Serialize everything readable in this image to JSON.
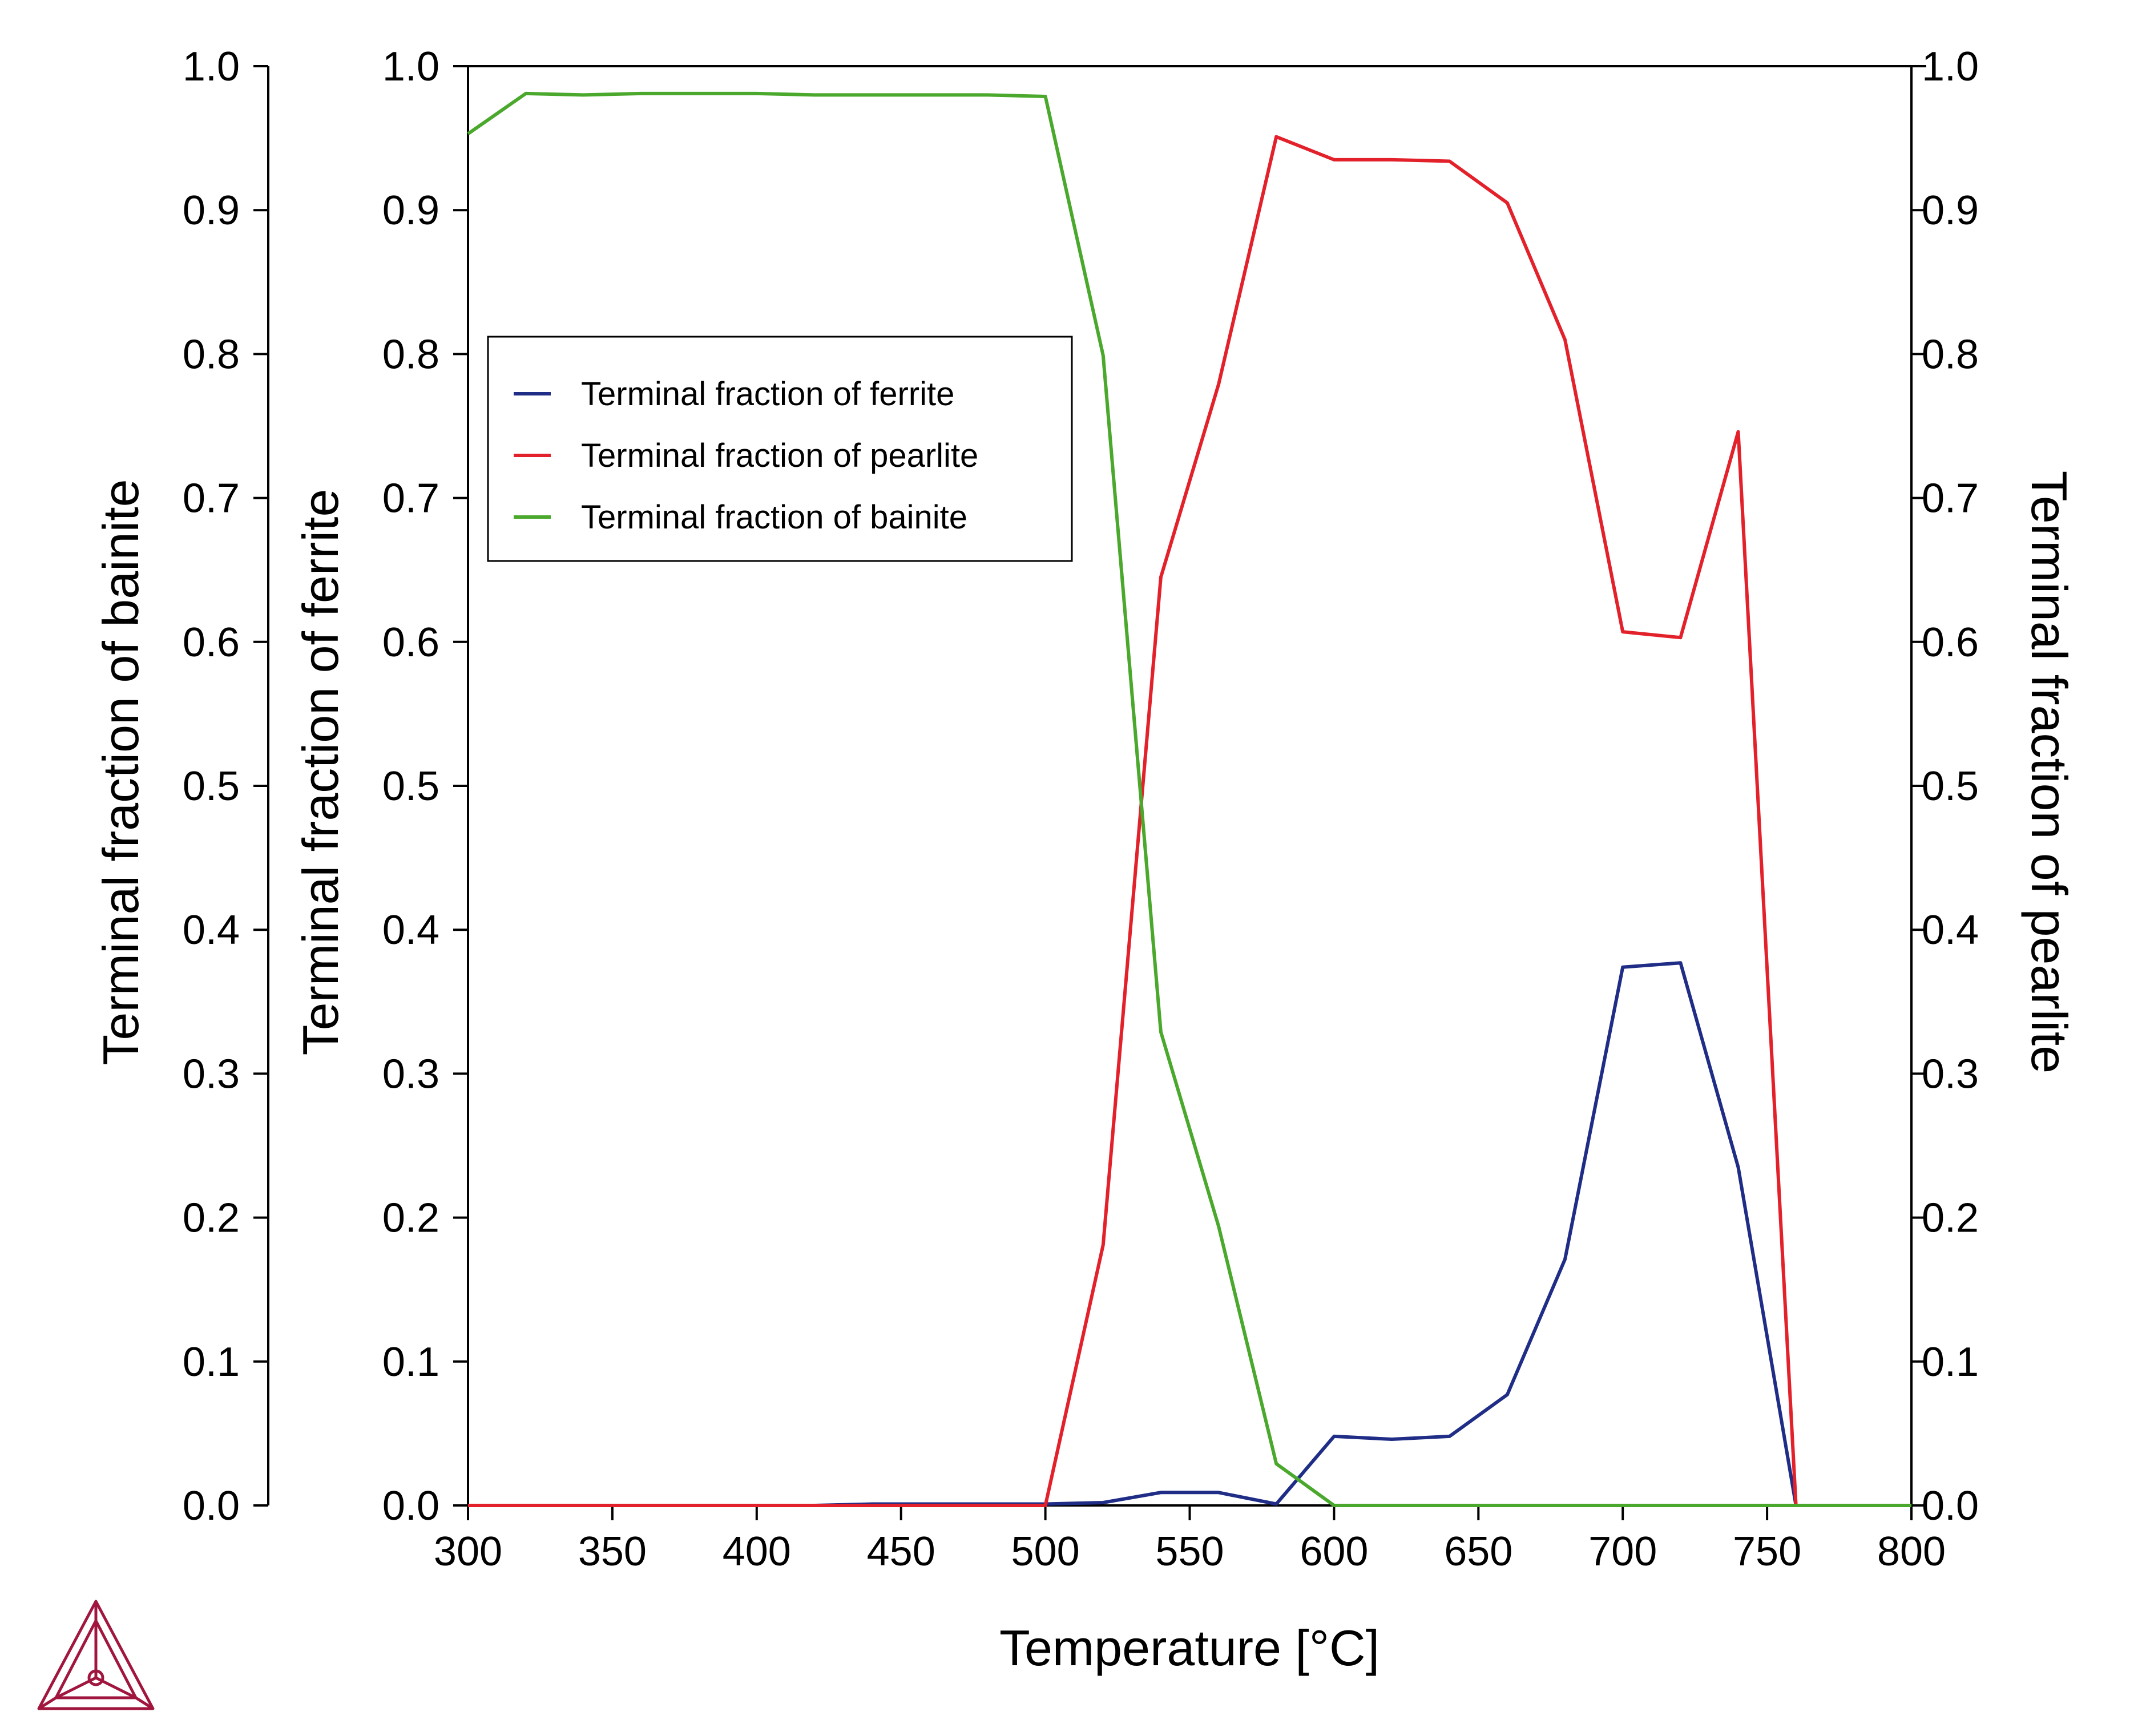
{
  "chart_data": {
    "type": "line",
    "xlabel": "Temperature [°C]",
    "xlim": [
      300,
      800
    ],
    "x_ticks": [
      "300",
      "350",
      "400",
      "450",
      "500",
      "550",
      "600",
      "650",
      "700",
      "750",
      "800"
    ],
    "y_ticks": [
      "0.0",
      "0.1",
      "0.2",
      "0.3",
      "0.4",
      "0.5",
      "0.6",
      "0.7",
      "0.8",
      "0.9",
      "1.0"
    ],
    "axes": {
      "ferrite": {
        "label": "Terminal fraction of ferrite",
        "ylim": [
          0,
          1
        ],
        "position": "left-inner"
      },
      "bainite": {
        "label": "Terminal fraction of bainite",
        "ylim": [
          0,
          1
        ],
        "position": "left-outer"
      },
      "pearlite": {
        "label": "Terminal fraction of pearlite",
        "ylim": [
          0,
          1
        ],
        "position": "right"
      }
    },
    "legend_position": "upper-left",
    "series": [
      {
        "name": "Terminal fraction of ferrite",
        "color": "#1f2d86",
        "axis": "ferrite",
        "x": [
          300,
          320,
          340,
          360,
          380,
          400,
          420,
          440,
          460,
          480,
          500,
          520,
          540,
          560,
          580,
          600,
          620,
          640,
          660,
          680,
          700,
          720,
          740,
          760,
          780,
          800
        ],
        "y": [
          0,
          0,
          0,
          0,
          0,
          0,
          0,
          0.001,
          0.001,
          0.001,
          0.001,
          0.002,
          0.009,
          0.009,
          0.001,
          0.048,
          0.046,
          0.048,
          0.077,
          0.171,
          0.374,
          0.377,
          0.235,
          0,
          0,
          0
        ]
      },
      {
        "name": "Terminal fraction of pearlite",
        "color": "#e3212b",
        "axis": "pearlite",
        "x": [
          300,
          320,
          340,
          360,
          380,
          400,
          420,
          440,
          460,
          480,
          500,
          520,
          540,
          560,
          580,
          600,
          620,
          640,
          660,
          680,
          700,
          720,
          740,
          760,
          780,
          800
        ],
        "y": [
          0,
          0,
          0,
          0,
          0,
          0,
          0,
          0,
          0,
          0,
          0,
          0.181,
          0.645,
          0.779,
          0.951,
          0.935,
          0.935,
          0.934,
          0.905,
          0.81,
          0.607,
          0.603,
          0.746,
          0,
          0,
          0
        ]
      },
      {
        "name": "Terminal fraction of bainite",
        "color": "#4aa82c",
        "axis": "bainite",
        "x": [
          300,
          320,
          340,
          360,
          380,
          400,
          420,
          440,
          460,
          480,
          500,
          520,
          540,
          560,
          580,
          600,
          620,
          640,
          660,
          680,
          700,
          720,
          740,
          760,
          780,
          800
        ],
        "y": [
          0.953,
          0.981,
          0.98,
          0.981,
          0.981,
          0.981,
          0.98,
          0.98,
          0.98,
          0.98,
          0.979,
          0.799,
          0.329,
          0.194,
          0.029,
          0,
          0,
          0,
          0,
          0,
          0,
          0,
          0,
          0,
          0,
          0
        ]
      }
    ]
  },
  "logo": {
    "name": "thermo-calc-logo-icon",
    "color": "#a0163e"
  }
}
